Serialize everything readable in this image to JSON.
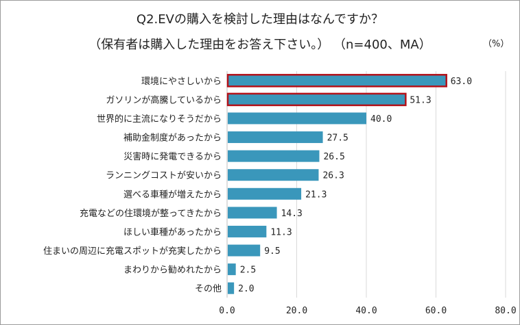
{
  "chart_data": {
    "type": "bar",
    "orientation": "horizontal",
    "title": "Q2.EVの購入を検討した理由はなんですか？",
    "subtitle": "（保有者は購入した理由をお答え下さい。） （n=400、MA）",
    "unit_label": "（%）",
    "categories": [
      "環境にやさしいから",
      "ガソリンが高騰しているから",
      "世界的に主流になりそうだから",
      "補助金制度があったから",
      "災害時に発電できるから",
      "ランニングコストが安いから",
      "選べる車種が増えたから",
      "充電などの住環境が整ってきたから",
      "ほしい車種があったから",
      "住まいの周辺に充電スポットが充実したから",
      "まわりから勧めれたから",
      "その他"
    ],
    "values": [
      63.0,
      51.3,
      40.0,
      27.5,
      26.5,
      26.3,
      21.3,
      14.3,
      11.3,
      9.5,
      2.5,
      2.0
    ],
    "value_labels": [
      "63.0",
      "51.3",
      "40.0",
      "27.5",
      "26.5",
      "26.3",
      "21.3",
      "14.3",
      "11.3",
      "9.5",
      "2.5",
      "2.0"
    ],
    "highlighted": [
      true,
      true,
      false,
      false,
      false,
      false,
      false,
      false,
      false,
      false,
      false,
      false
    ],
    "xlim": [
      0,
      80
    ],
    "xticks": [
      0,
      20,
      40,
      60,
      80
    ],
    "xtick_labels": [
      "0.0",
      "20.0",
      "40.0",
      "60.0",
      "80.0"
    ],
    "grid": true,
    "bar_color": "#3a97bb",
    "highlight_border_color": "#b3121a",
    "grid_color": "#d9d9d9"
  }
}
